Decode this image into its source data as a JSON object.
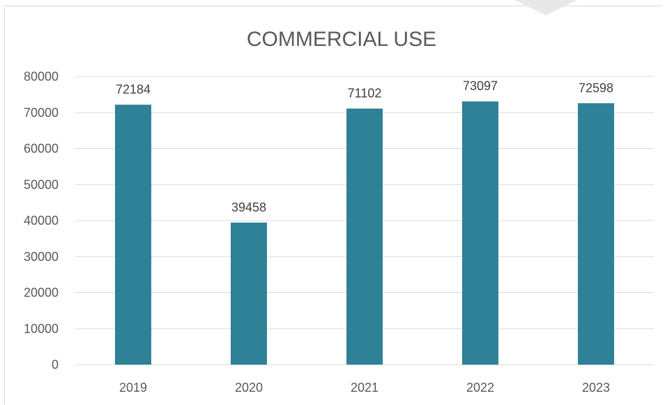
{
  "chart_data": {
    "type": "bar",
    "title": "COMMERCIAL USE",
    "xlabel": "",
    "ylabel": "",
    "categories": [
      "2019",
      "2020",
      "2021",
      "2022",
      "2023"
    ],
    "values": [
      72184,
      39458,
      71102,
      73097,
      72598
    ],
    "data_labels": [
      "72184",
      "39458",
      "71102",
      "73097",
      "72598"
    ],
    "ylim": [
      0,
      80000
    ],
    "yticks": [
      0,
      10000,
      20000,
      30000,
      40000,
      50000,
      60000,
      70000,
      80000
    ],
    "ytick_labels": [
      "0",
      "10000",
      "20000",
      "30000",
      "40000",
      "50000",
      "60000",
      "70000",
      "80000"
    ],
    "grid": true,
    "legend": "none",
    "colors": {
      "bar": "#2e8197",
      "grid": "#d9d9d9",
      "text": "#595959"
    }
  }
}
